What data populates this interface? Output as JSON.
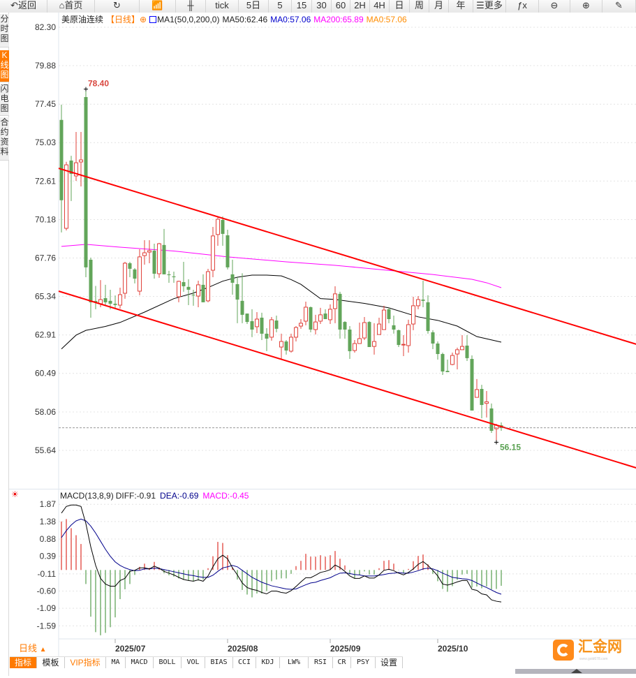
{
  "toolbar": {
    "items": [
      {
        "label": "返回",
        "icon": "back-arrow-icon",
        "glyph": "↶"
      },
      {
        "label": "首页",
        "icon": "home-icon",
        "glyph": "⌂"
      },
      {
        "label": "",
        "icon": "refresh-icon",
        "glyph": "↻"
      },
      {
        "label": "",
        "icon": "bar-chart-icon",
        "glyph": "📶"
      },
      {
        "label": "",
        "icon": "candlestick-icon",
        "glyph": "╫"
      },
      {
        "label": "tick"
      },
      {
        "label": "5日"
      },
      {
        "label": "5"
      },
      {
        "label": "15"
      },
      {
        "label": "30"
      },
      {
        "label": "60"
      },
      {
        "label": "2H"
      },
      {
        "label": "4H"
      },
      {
        "label": "日"
      },
      {
        "label": "周"
      },
      {
        "label": "月"
      },
      {
        "label": "年"
      },
      {
        "label": "更多",
        "icon": "menu-icon",
        "glyph": "☰"
      },
      {
        "label": "",
        "icon": "fx-icon",
        "glyph": "ƒx"
      },
      {
        "label": "",
        "icon": "zoom-out-icon",
        "glyph": "⊖"
      },
      {
        "label": "",
        "icon": "zoom-in-icon",
        "glyph": "⊕"
      },
      {
        "label": "",
        "icon": "pen-icon",
        "glyph": "✎"
      }
    ]
  },
  "sidebar": {
    "tabs": [
      {
        "label": "分时图",
        "active": false
      },
      {
        "label": "K线图",
        "active": true
      },
      {
        "label": "闪电图",
        "active": false
      },
      {
        "label": "合约资料",
        "active": false
      }
    ]
  },
  "legend": {
    "symbol": "美原油连续",
    "period": "【日线】",
    "ma_def": "MA1(50,0,200,0)",
    "ma50": "MA50:62.46",
    "ma0_blue": "MA0:57.06",
    "ma200": "MA200:65.89",
    "ma0_orange": "MA0:57.06"
  },
  "macd_legend": {
    "title": "MACD(13,8,9)",
    "diff": "DIFF:-0.91",
    "dea": "DEA:-0.69",
    "macd": "MACD:-0.45"
  },
  "colors": {
    "up": "#e0413a",
    "down": "#62a55a",
    "trendline": "#ff0000",
    "ma50": "#000000",
    "ma200": "#ff00ff",
    "diff": "#000000",
    "dea": "#00008b",
    "accent": "#ff7a00",
    "last_price_line": "#1e6fd9",
    "ma0_blue": "#0000cc",
    "macd_label": "#ff00ff"
  },
  "chart_data": [
    {
      "type": "candlestick",
      "price_ticks": [
        "82.30",
        "79.88",
        "77.45",
        "75.03",
        "72.61",
        "70.18",
        "67.76",
        "65.34",
        "62.91",
        "60.49",
        "58.06",
        "55.64"
      ],
      "ylim": [
        55.64,
        82.3
      ],
      "x_ticks": [
        {
          "label": "2025/07",
          "bar": 12
        },
        {
          "label": "2025/08",
          "bar": 35
        },
        {
          "label": "2025/09",
          "bar": 56
        },
        {
          "label": "2025/10",
          "bar": 78
        }
      ],
      "annotations": {
        "high": "78.40",
        "low": "56.15",
        "last": 57.06
      },
      "ohlc": [
        [
          76.46,
          77.42,
          69.37,
          71.4
        ],
        [
          69.63,
          73.82,
          69.5,
          73.63
        ],
        [
          73.9,
          74.2,
          71.35,
          73.06
        ],
        [
          72.93,
          75.7,
          72.62,
          73.76
        ],
        [
          73.81,
          75.7,
          72.27,
          73.94
        ],
        [
          77.9,
          78.4,
          66.55,
          67.17
        ],
        [
          67.65,
          67.78,
          64.0,
          64.97
        ],
        [
          65.05,
          66.0,
          64.53,
          64.95
        ],
        [
          64.88,
          66.37,
          64.66,
          65.14
        ],
        [
          65.23,
          66.07,
          64.75,
          64.97
        ],
        [
          65.06,
          65.76,
          64.53,
          64.88
        ],
        [
          64.88,
          65.4,
          64.6,
          64.8
        ],
        [
          64.79,
          65.89,
          64.57,
          65.45
        ],
        [
          65.54,
          67.52,
          65.19,
          67.43
        ],
        [
          67.43,
          67.52,
          66.55,
          67.08
        ],
        [
          67.04,
          67.12,
          66.16,
          66.46
        ],
        [
          65.67,
          68.31,
          65.41,
          67.83
        ],
        [
          67.91,
          68.88,
          67.34,
          68.09
        ],
        [
          68.13,
          68.88,
          67.43,
          68.22
        ],
        [
          68.22,
          68.66,
          66.46,
          66.77
        ],
        [
          66.77,
          68.71,
          66.51,
          68.66
        ],
        [
          68.58,
          69.59,
          66.73,
          66.73
        ],
        [
          66.73,
          66.95,
          66.2,
          66.68
        ],
        [
          66.6,
          66.9,
          66.2,
          66.55
        ],
        [
          65.32,
          66.33,
          64.97,
          66.29
        ],
        [
          66.24,
          67.52,
          65.63,
          65.98
        ],
        [
          65.94,
          66.42,
          64.79,
          65.76
        ],
        [
          65.45,
          65.76,
          64.75,
          65.41
        ],
        [
          65.36,
          66.33,
          64.66,
          66.07
        ],
        [
          66.07,
          66.73,
          64.97,
          64.97
        ],
        [
          65.06,
          67.08,
          64.97,
          66.9
        ],
        [
          66.99,
          69.72,
          66.55,
          69.15
        ],
        [
          69.24,
          70.38,
          68.53,
          70.2
        ],
        [
          70.16,
          70.38,
          68.53,
          69.28
        ],
        [
          69.19,
          69.54,
          67.04,
          67.17
        ],
        [
          66.73,
          67.65,
          65.45,
          66.2
        ],
        [
          66.11,
          66.55,
          63.65,
          65.14
        ],
        [
          65.06,
          66.8,
          63.65,
          64.18
        ],
        [
          64.26,
          64.26,
          63.6,
          63.73
        ],
        [
          63.78,
          64.53,
          62.77,
          63.25
        ],
        [
          63.43,
          64.35,
          63.03,
          63.91
        ],
        [
          64.0,
          64.31,
          62.59,
          62.99
        ],
        [
          62.99,
          63.34,
          61.89,
          62.68
        ],
        [
          62.77,
          64.04,
          62.55,
          63.87
        ],
        [
          63.82,
          64.13,
          63.08,
          63.3
        ],
        [
          62.15,
          62.99,
          61.36,
          62.5
        ],
        [
          62.5,
          62.59,
          61.67,
          61.93
        ],
        [
          61.89,
          62.99,
          61.8,
          62.77
        ],
        [
          62.77,
          63.47,
          62.5,
          63.38
        ],
        [
          63.47,
          63.91,
          63.3,
          63.65
        ],
        [
          63.78,
          65.01,
          63.52,
          64.66
        ],
        [
          64.66,
          64.7,
          63.08,
          63.25
        ],
        [
          63.25,
          64.18,
          62.94,
          63.73
        ],
        [
          63.78,
          64.62,
          63.6,
          64.18
        ],
        [
          64.26,
          64.53,
          63.91,
          63.91
        ],
        [
          63.87,
          64.84,
          63.6,
          64.53
        ],
        [
          64.57,
          65.98,
          63.65,
          65.5
        ],
        [
          65.5,
          65.63,
          62.68,
          63.25
        ],
        [
          63.73,
          63.78,
          62.68,
          63.25
        ],
        [
          63.25,
          63.47,
          61.4,
          61.89
        ],
        [
          61.93,
          62.59,
          61.8,
          62.37
        ],
        [
          62.37,
          63.69,
          62.37,
          62.68
        ],
        [
          62.72,
          64.04,
          62.59,
          63.69
        ],
        [
          63.73,
          63.78,
          62.15,
          62.15
        ],
        [
          62.19,
          63.65,
          61.67,
          62.5
        ],
        [
          62.94,
          64.0,
          62.94,
          63.6
        ],
        [
          63.25,
          64.75,
          63.25,
          64.48
        ],
        [
          64.53,
          64.62,
          63.65,
          63.91
        ],
        [
          63.52,
          64.13,
          62.99,
          63.25
        ],
        [
          63.21,
          63.25,
          62.15,
          62.28
        ],
        [
          62.28,
          62.9,
          61.58,
          62.32
        ],
        [
          62.24,
          63.87,
          61.8,
          63.56
        ],
        [
          63.6,
          65.32,
          63.21,
          64.75
        ],
        [
          64.75,
          65.36,
          64.53,
          65.14
        ],
        [
          65.14,
          66.33,
          64.66,
          65.06
        ],
        [
          64.97,
          65.41,
          62.99,
          63.16
        ],
        [
          63.08,
          63.21,
          62.02,
          62.37
        ],
        [
          62.37,
          62.5,
          61.36,
          61.71
        ],
        [
          61.71,
          61.8,
          60.39,
          60.61
        ],
        [
          60.65,
          61.36,
          60.57,
          60.57
        ],
        [
          61.05,
          61.8,
          61.0,
          61.62
        ],
        [
          61.71,
          62.11,
          60.74,
          61.98
        ],
        [
          61.98,
          62.9,
          61.98,
          62.19
        ],
        [
          62.24,
          62.9,
          61.27,
          61.45
        ],
        [
          61.4,
          61.62,
          58.15,
          58.15
        ],
        [
          58.98,
          60.13,
          58.98,
          59.47
        ],
        [
          59.51,
          59.77,
          57.66,
          58.5
        ],
        [
          58.6,
          59.38,
          57.71,
          58.7
        ],
        [
          58.28,
          58.59,
          56.74,
          56.87
        ],
        [
          57.0,
          57.31,
          56.15,
          57.22
        ],
        [
          57.22,
          57.4,
          56.87,
          57.06
        ]
      ],
      "ma50": [
        [
          1,
          62.03
        ],
        [
          4,
          62.9
        ],
        [
          6,
          63.2
        ],
        [
          10,
          63.45
        ],
        [
          13,
          63.7
        ],
        [
          18,
          64.35
        ],
        [
          24,
          65.2
        ],
        [
          28,
          65.55
        ],
        [
          31,
          65.9
        ],
        [
          34,
          66.3
        ],
        [
          37,
          66.55
        ],
        [
          40,
          66.68
        ],
        [
          43,
          66.68
        ],
        [
          46,
          66.63
        ],
        [
          48,
          66.4
        ],
        [
          50,
          66.1
        ],
        [
          54,
          65.2
        ],
        [
          57,
          65.15
        ],
        [
          63,
          64.9
        ],
        [
          68,
          64.62
        ],
        [
          74,
          64.05
        ],
        [
          78,
          63.83
        ],
        [
          82,
          63.47
        ],
        [
          86,
          62.81
        ],
        [
          91,
          62.46
        ]
      ],
      "ma200": [
        [
          1,
          68.49
        ],
        [
          6,
          68.62
        ],
        [
          13,
          68.44
        ],
        [
          24,
          68.2
        ],
        [
          35,
          67.83
        ],
        [
          47,
          67.52
        ],
        [
          57,
          67.3
        ],
        [
          68,
          66.98
        ],
        [
          77,
          66.72
        ],
        [
          85,
          66.42
        ],
        [
          88,
          66.2
        ],
        [
          91,
          65.89
        ]
      ],
      "trendlines": [
        {
          "from": [
            0.43,
            73.41
          ],
          "to": [
            118.6,
            62.33
          ]
        },
        {
          "from": [
            0.43,
            65.67
          ],
          "to": [
            118.6,
            54.54
          ]
        }
      ]
    },
    {
      "type": "macd",
      "ticks": [
        "1.87",
        "1.38",
        "0.88",
        "0.39",
        "-0.11",
        "-0.60",
        "-1.09",
        "-1.59"
      ],
      "ylim": [
        -1.59,
        1.87
      ],
      "histogram": [
        1.38,
        1.45,
        1.19,
        0.99,
        0.74,
        -0.4,
        -1.33,
        -1.77,
        -1.86,
        -1.79,
        -1.63,
        -1.35,
        -0.83,
        -0.55,
        -0.4,
        -0.14,
        0.09,
        0.18,
        0.06,
        0.23,
        0.07,
        -0.09,
        -0.15,
        -0.19,
        -0.24,
        -0.28,
        -0.3,
        -0.32,
        -0.3,
        -0.27,
        0.05,
        0.39,
        0.8,
        0.77,
        0.42,
        0.07,
        -0.27,
        -0.57,
        -0.7,
        -0.78,
        -0.67,
        -0.67,
        -0.6,
        -0.32,
        -0.27,
        -0.24,
        -0.24,
        -0.11,
        0.11,
        0.26,
        0.46,
        0.38,
        0.38,
        0.42,
        0.38,
        0.42,
        0.54,
        0.32,
        0.13,
        -0.13,
        -0.24,
        -0.14,
        -0.04,
        -0.13,
        -0.13,
        0.05,
        0.26,
        0.28,
        0.18,
        -0.01,
        -0.09,
        0.03,
        0.25,
        0.4,
        0.44,
        0.16,
        -0.11,
        -0.32,
        -0.54,
        -0.62,
        -0.46,
        -0.28,
        -0.13,
        -0.11,
        -0.5,
        -0.47,
        -0.52,
        -0.47,
        -0.55,
        -0.54,
        -0.45
      ],
      "diff": [
        1.62,
        1.81,
        1.85,
        1.85,
        1.81,
        1.32,
        0.66,
        0.13,
        -0.24,
        -0.4,
        -0.46,
        -0.46,
        -0.3,
        -0.24,
        -0.04,
        -0.01,
        0.06,
        0.06,
        0.03,
        0.11,
        0.05,
        -0.04,
        -0.09,
        -0.14,
        -0.21,
        -0.27,
        -0.3,
        -0.32,
        -0.28,
        -0.32,
        -0.17,
        0.09,
        0.32,
        0.42,
        0.32,
        0.06,
        -0.14,
        -0.37,
        -0.5,
        -0.55,
        -0.58,
        -0.64,
        -0.68,
        -0.6,
        -0.6,
        -0.64,
        -0.66,
        -0.59,
        -0.47,
        -0.34,
        -0.22,
        -0.22,
        -0.15,
        -0.07,
        -0.04,
        0.01,
        0.14,
        0.07,
        -0.04,
        -0.17,
        -0.24,
        -0.24,
        -0.17,
        -0.23,
        -0.23,
        -0.14,
        -0.01,
        0.02,
        -0.02,
        -0.09,
        -0.14,
        -0.07,
        0.03,
        0.16,
        0.24,
        0.13,
        -0.01,
        -0.17,
        -0.4,
        -0.43,
        -0.39,
        -0.34,
        -0.3,
        -0.3,
        -0.55,
        -0.58,
        -0.68,
        -0.71,
        -0.85,
        -0.89,
        -0.91
      ],
      "dea": [
        0.92,
        1.12,
        1.28,
        1.4,
        1.45,
        1.4,
        1.25,
        1.05,
        0.82,
        0.59,
        0.39,
        0.23,
        0.13,
        0.06,
        0.01,
        -0.02,
        -0.01,
        0.03,
        0.03,
        0.05,
        0.04,
        0.01,
        -0.02,
        -0.05,
        -0.08,
        -0.11,
        -0.14,
        -0.16,
        -0.19,
        -0.21,
        -0.21,
        -0.15,
        -0.04,
        0.06,
        0.09,
        0.13,
        0.09,
        -0.01,
        -0.11,
        -0.21,
        -0.28,
        -0.35,
        -0.4,
        -0.45,
        -0.48,
        -0.51,
        -0.54,
        -0.55,
        -0.54,
        -0.48,
        -0.42,
        -0.37,
        -0.35,
        -0.3,
        -0.26,
        -0.22,
        -0.15,
        -0.09,
        -0.08,
        -0.1,
        -0.13,
        -0.14,
        -0.17,
        -0.17,
        -0.17,
        -0.15,
        -0.13,
        -0.1,
        -0.09,
        -0.07,
        -0.09,
        -0.09,
        -0.06,
        -0.02,
        0.03,
        0.05,
        0.03,
        -0.02,
        -0.09,
        -0.15,
        -0.21,
        -0.23,
        -0.25,
        -0.26,
        -0.3,
        -0.37,
        -0.44,
        -0.5,
        -0.57,
        -0.64,
        -0.69
      ]
    }
  ],
  "footer": {
    "period_label": "日线",
    "period_caret": "▲",
    "tabs": [
      "指标",
      "模板",
      "VIP指标",
      "MA",
      "MACD",
      "BOLL",
      "VOL",
      "BIAS",
      "CCI",
      "KDJ",
      "LW%",
      "RSI",
      "CR",
      "PSY",
      "设置"
    ]
  },
  "logo": {
    "text": "汇金网",
    "url": "www.gold678.com"
  }
}
